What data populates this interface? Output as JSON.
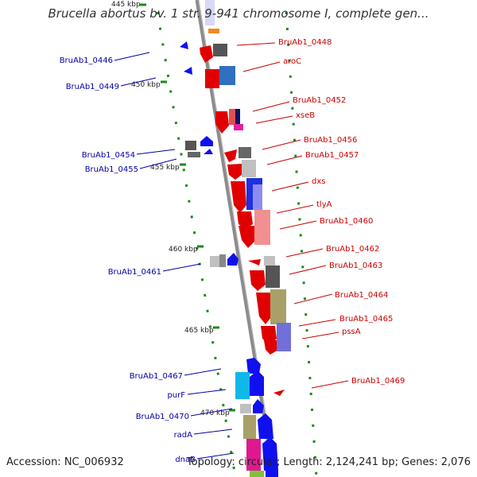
{
  "title": "Brucella abortus bv. 1 str. 9-941 chromosome I, complete gen...",
  "footer": {
    "accession": "Accession: NC_006932",
    "summary": "Topology: circular; Length: 2,124,241 bp; Genes: 2,076"
  },
  "colors": {
    "backbone": "#8c8c8c",
    "tick": "#1a8a1a",
    "forward_label": "#0000aa",
    "reverse_label": "#cc0000"
  },
  "scale_labels": [
    "445 kbp",
    "450 kbp",
    "455 kbp",
    "460 kbp",
    "465 kbp",
    "470 kbp"
  ],
  "forward_gene_labels": [
    "BruAb1_0446",
    "BruAb1_0449",
    "BruAb1_0454",
    "BruAb1_0455",
    "BruAb1_0461",
    "BruAb1_0467",
    "purF",
    "BruAb1_0470",
    "radA",
    "dnaB"
  ],
  "reverse_gene_labels": [
    "BruAb1_0448",
    "aroC",
    "BruAb1_0452",
    "xseB",
    "BruAb1_0456",
    "BruAb1_0457",
    "dxs",
    "tlyA",
    "BruAb1_0460",
    "BruAb1_0462",
    "BruAb1_0463",
    "BruAb1_0464",
    "BruAb1_0465",
    "pssA",
    "BruAb1_0469"
  ]
}
